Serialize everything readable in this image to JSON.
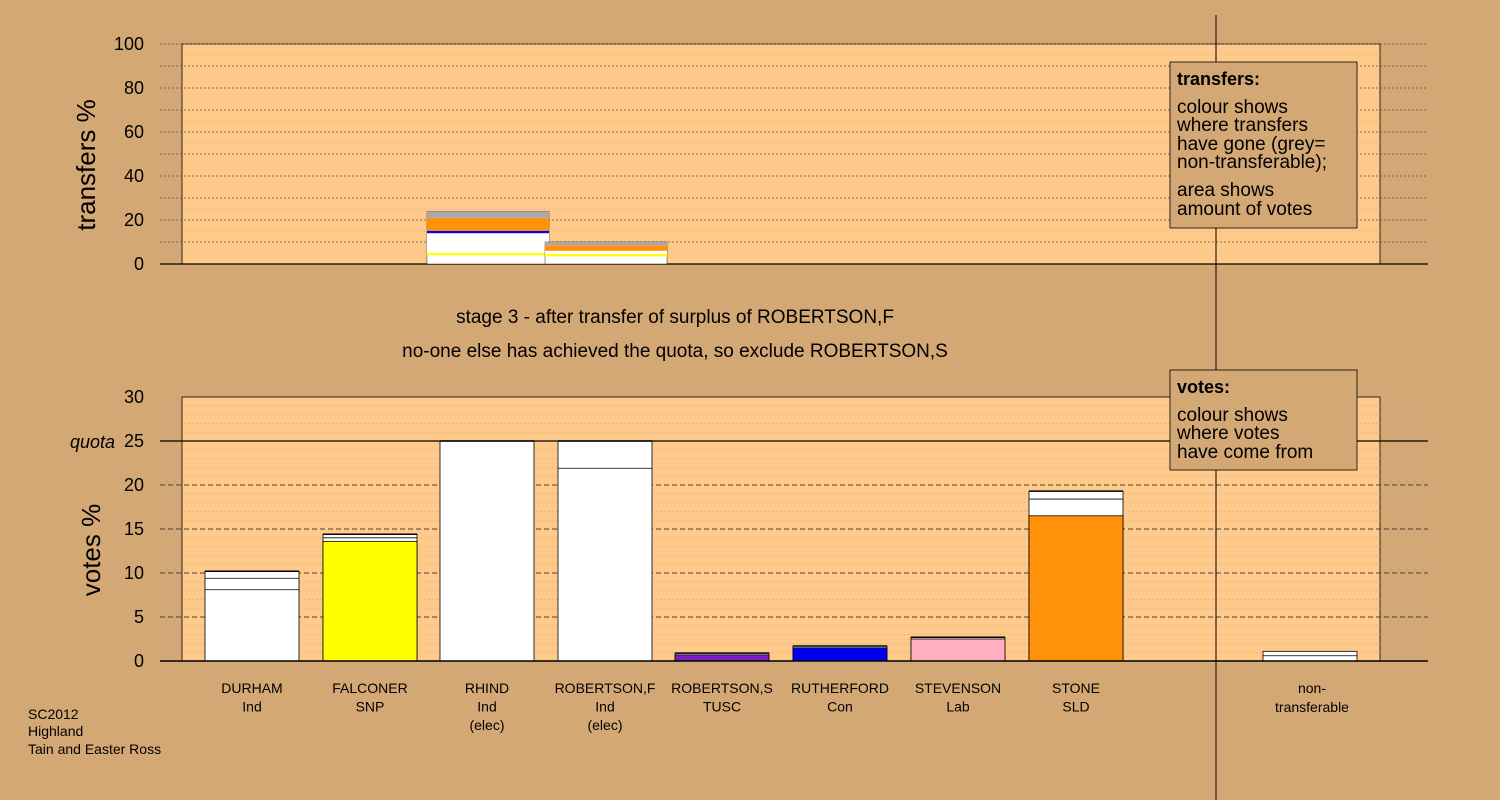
{
  "caption": {
    "line1": "stage 3 - after transfer of surplus of ROBERTSON,F",
    "line2": "no-one else has achieved the quota, so exclude ROBERTSON,S"
  },
  "legend_transfers": {
    "title": "transfers:",
    "lines": [
      "colour shows",
      "where transfers",
      "have gone (grey=",
      "non-transferable);",
      "area shows",
      "amount of votes"
    ]
  },
  "legend_votes": {
    "title": "votes:",
    "lines": [
      "colour shows",
      "where votes",
      "have come from"
    ]
  },
  "footer": [
    "SC2012",
    "Highland",
    "Tain and Easter Ross"
  ],
  "colors": {
    "background": "#d4a874",
    "panel": "#ffc98a",
    "white": "#ffffff",
    "SNP": "#ffff00",
    "TUSC": "#7a1fbf",
    "Con": "#0000ee",
    "Lab": "#ffafc0",
    "SLD": "#ff9208",
    "nontransferable": "#a8a8a8"
  },
  "chart_data": [
    {
      "type": "bar",
      "name": "transfers",
      "ylabel": "transfers %",
      "ylim": [
        0,
        100
      ],
      "yticks": [
        0,
        20,
        40,
        60,
        80,
        100
      ],
      "bars": [
        {
          "candidate_index": 2,
          "total": 24,
          "segments": [
            {
              "to": "SNP",
              "from": 4,
              "to_value": 5
            },
            {
              "to": "Ind",
              "from": 5,
              "to_value": 14
            },
            {
              "to": "Con",
              "from": 14,
              "to_value": 15
            },
            {
              "to": "SLD",
              "from": 15,
              "to_value": 21
            },
            {
              "to": "non-transferable",
              "from": 21,
              "to_value": 24
            }
          ]
        },
        {
          "candidate_index": 3,
          "total": 10,
          "segments": [
            {
              "to": "SNP",
              "from": 3.5,
              "to_value": 4.5
            },
            {
              "to": "Ind",
              "from": 4.5,
              "to_value": 6
            },
            {
              "to": "SLD",
              "from": 6,
              "to_value": 8.5
            },
            {
              "to": "non-transferable",
              "from": 8.5,
              "to_value": 10
            }
          ]
        }
      ]
    },
    {
      "type": "bar",
      "name": "votes",
      "ylabel": "votes %",
      "ylim": [
        0,
        30
      ],
      "yticks": [
        0,
        5,
        10,
        15,
        20,
        25,
        30
      ],
      "quota": 25,
      "quota_label": "quota",
      "candidates": [
        {
          "name": "DURHAM",
          "party": "Ind",
          "note": "",
          "color": "white",
          "total": 10.2,
          "lines": [
            8.1,
            9.4
          ]
        },
        {
          "name": "FALCONER",
          "party": "SNP",
          "note": "",
          "color": "SNP",
          "total": 14.4,
          "base": 13.6,
          "lines": [
            14.0
          ]
        },
        {
          "name": "RHIND",
          "party": "Ind",
          "note": "(elec)",
          "color": "white",
          "total": 25.0,
          "lines": []
        },
        {
          "name": "ROBERTSON,F",
          "party": "Ind",
          "note": "(elec)",
          "color": "white",
          "total": 25.0,
          "lines": [
            21.9
          ]
        },
        {
          "name": "ROBERTSON,S",
          "party": "TUSC",
          "note": "",
          "color": "TUSC",
          "total": 0.9,
          "base": 0.7,
          "lines": []
        },
        {
          "name": "RUTHERFORD",
          "party": "Con",
          "note": "",
          "color": "Con",
          "total": 1.7,
          "base": 1.5,
          "lines": []
        },
        {
          "name": "STEVENSON",
          "party": "Lab",
          "note": "",
          "color": "Lab",
          "total": 2.7,
          "base": 2.5,
          "lines": []
        },
        {
          "name": "STONE",
          "party": "SLD",
          "note": "",
          "color": "SLD",
          "total": 19.3,
          "base": 16.5,
          "lines": [
            18.4
          ]
        }
      ],
      "nontransferable": {
        "label_lines": [
          "non-",
          "transferable"
        ],
        "total": 1.1,
        "lines": [
          0.6
        ]
      }
    }
  ]
}
